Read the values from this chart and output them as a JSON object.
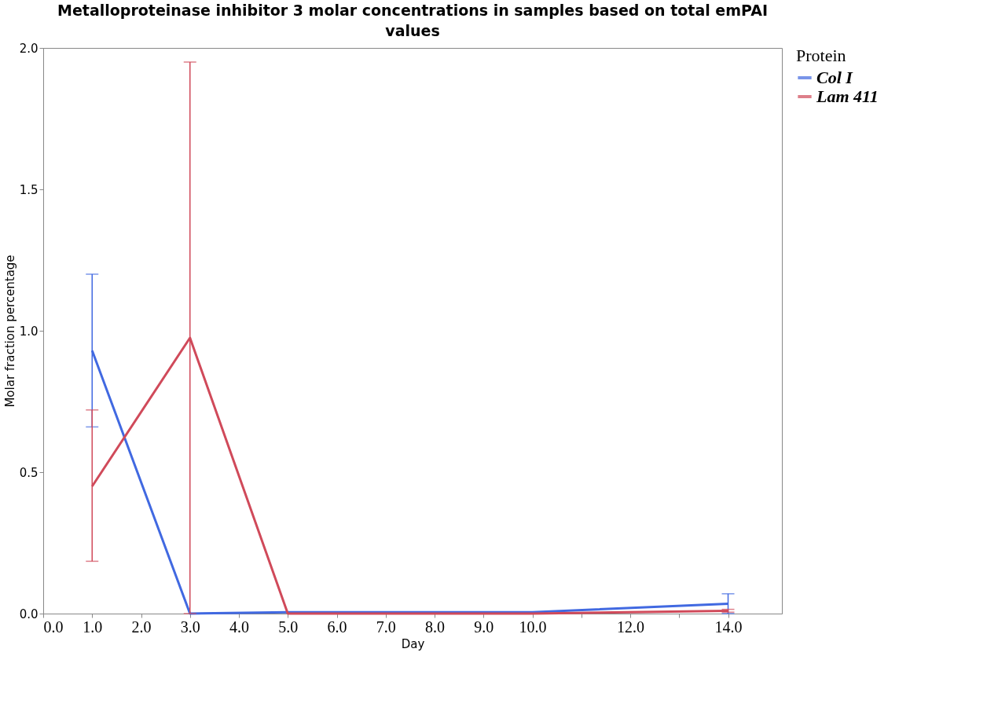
{
  "chart_data": {
    "type": "line",
    "title": "Metalloproteinase inhibitor 3 molar concentrations in samples based on total emPAI values",
    "xlabel": "Day",
    "ylabel": "Molar fraction percentage",
    "legend_title": "Protein",
    "legend": "top right",
    "x": [
      1,
      3,
      5,
      10,
      14
    ],
    "series": [
      {
        "name": "Col I",
        "color": "#4169e1",
        "values": [
          0.93,
          0.0,
          0.005,
          0.005,
          0.035
        ],
        "errors": [
          [
            0.66,
            1.2
          ],
          null,
          null,
          null,
          [
            0.0,
            0.07
          ]
        ]
      },
      {
        "name": "Lam 411",
        "color": "#d04a5a",
        "values": [
          0.45,
          0.975,
          0.0,
          0.0,
          0.01
        ],
        "errors": [
          [
            0.185,
            0.72
          ],
          [
            0.0,
            1.95
          ],
          null,
          null,
          [
            0.005,
            0.015
          ]
        ]
      }
    ],
    "xlim": [
      0,
      15.1
    ],
    "xticks": [
      {
        "value": 0,
        "label": "0.0"
      },
      {
        "value": 1,
        "label": "1.0"
      },
      {
        "value": 2,
        "label": "2.0"
      },
      {
        "value": 3,
        "label": "3.0"
      },
      {
        "value": 4,
        "label": "4.0"
      },
      {
        "value": 5,
        "label": "5.0"
      },
      {
        "value": 6,
        "label": "6.0"
      },
      {
        "value": 7,
        "label": "7.0"
      },
      {
        "value": 8,
        "label": "8.0"
      },
      {
        "value": 9,
        "label": "9.0"
      },
      {
        "value": 10,
        "label": "10.0"
      },
      {
        "value": 11,
        "label": null
      },
      {
        "value": 12,
        "label": "12.0"
      },
      {
        "value": 13,
        "label": null
      },
      {
        "value": 14,
        "label": "14.0"
      }
    ],
    "ylim": [
      0,
      2.0
    ],
    "yticks": [
      {
        "value": 0,
        "label": "0.0"
      },
      0.5,
      {
        "value": 1,
        "label": "1.0"
      },
      1.5,
      {
        "value": 2,
        "label": "2.0"
      }
    ],
    "grid": false
  }
}
